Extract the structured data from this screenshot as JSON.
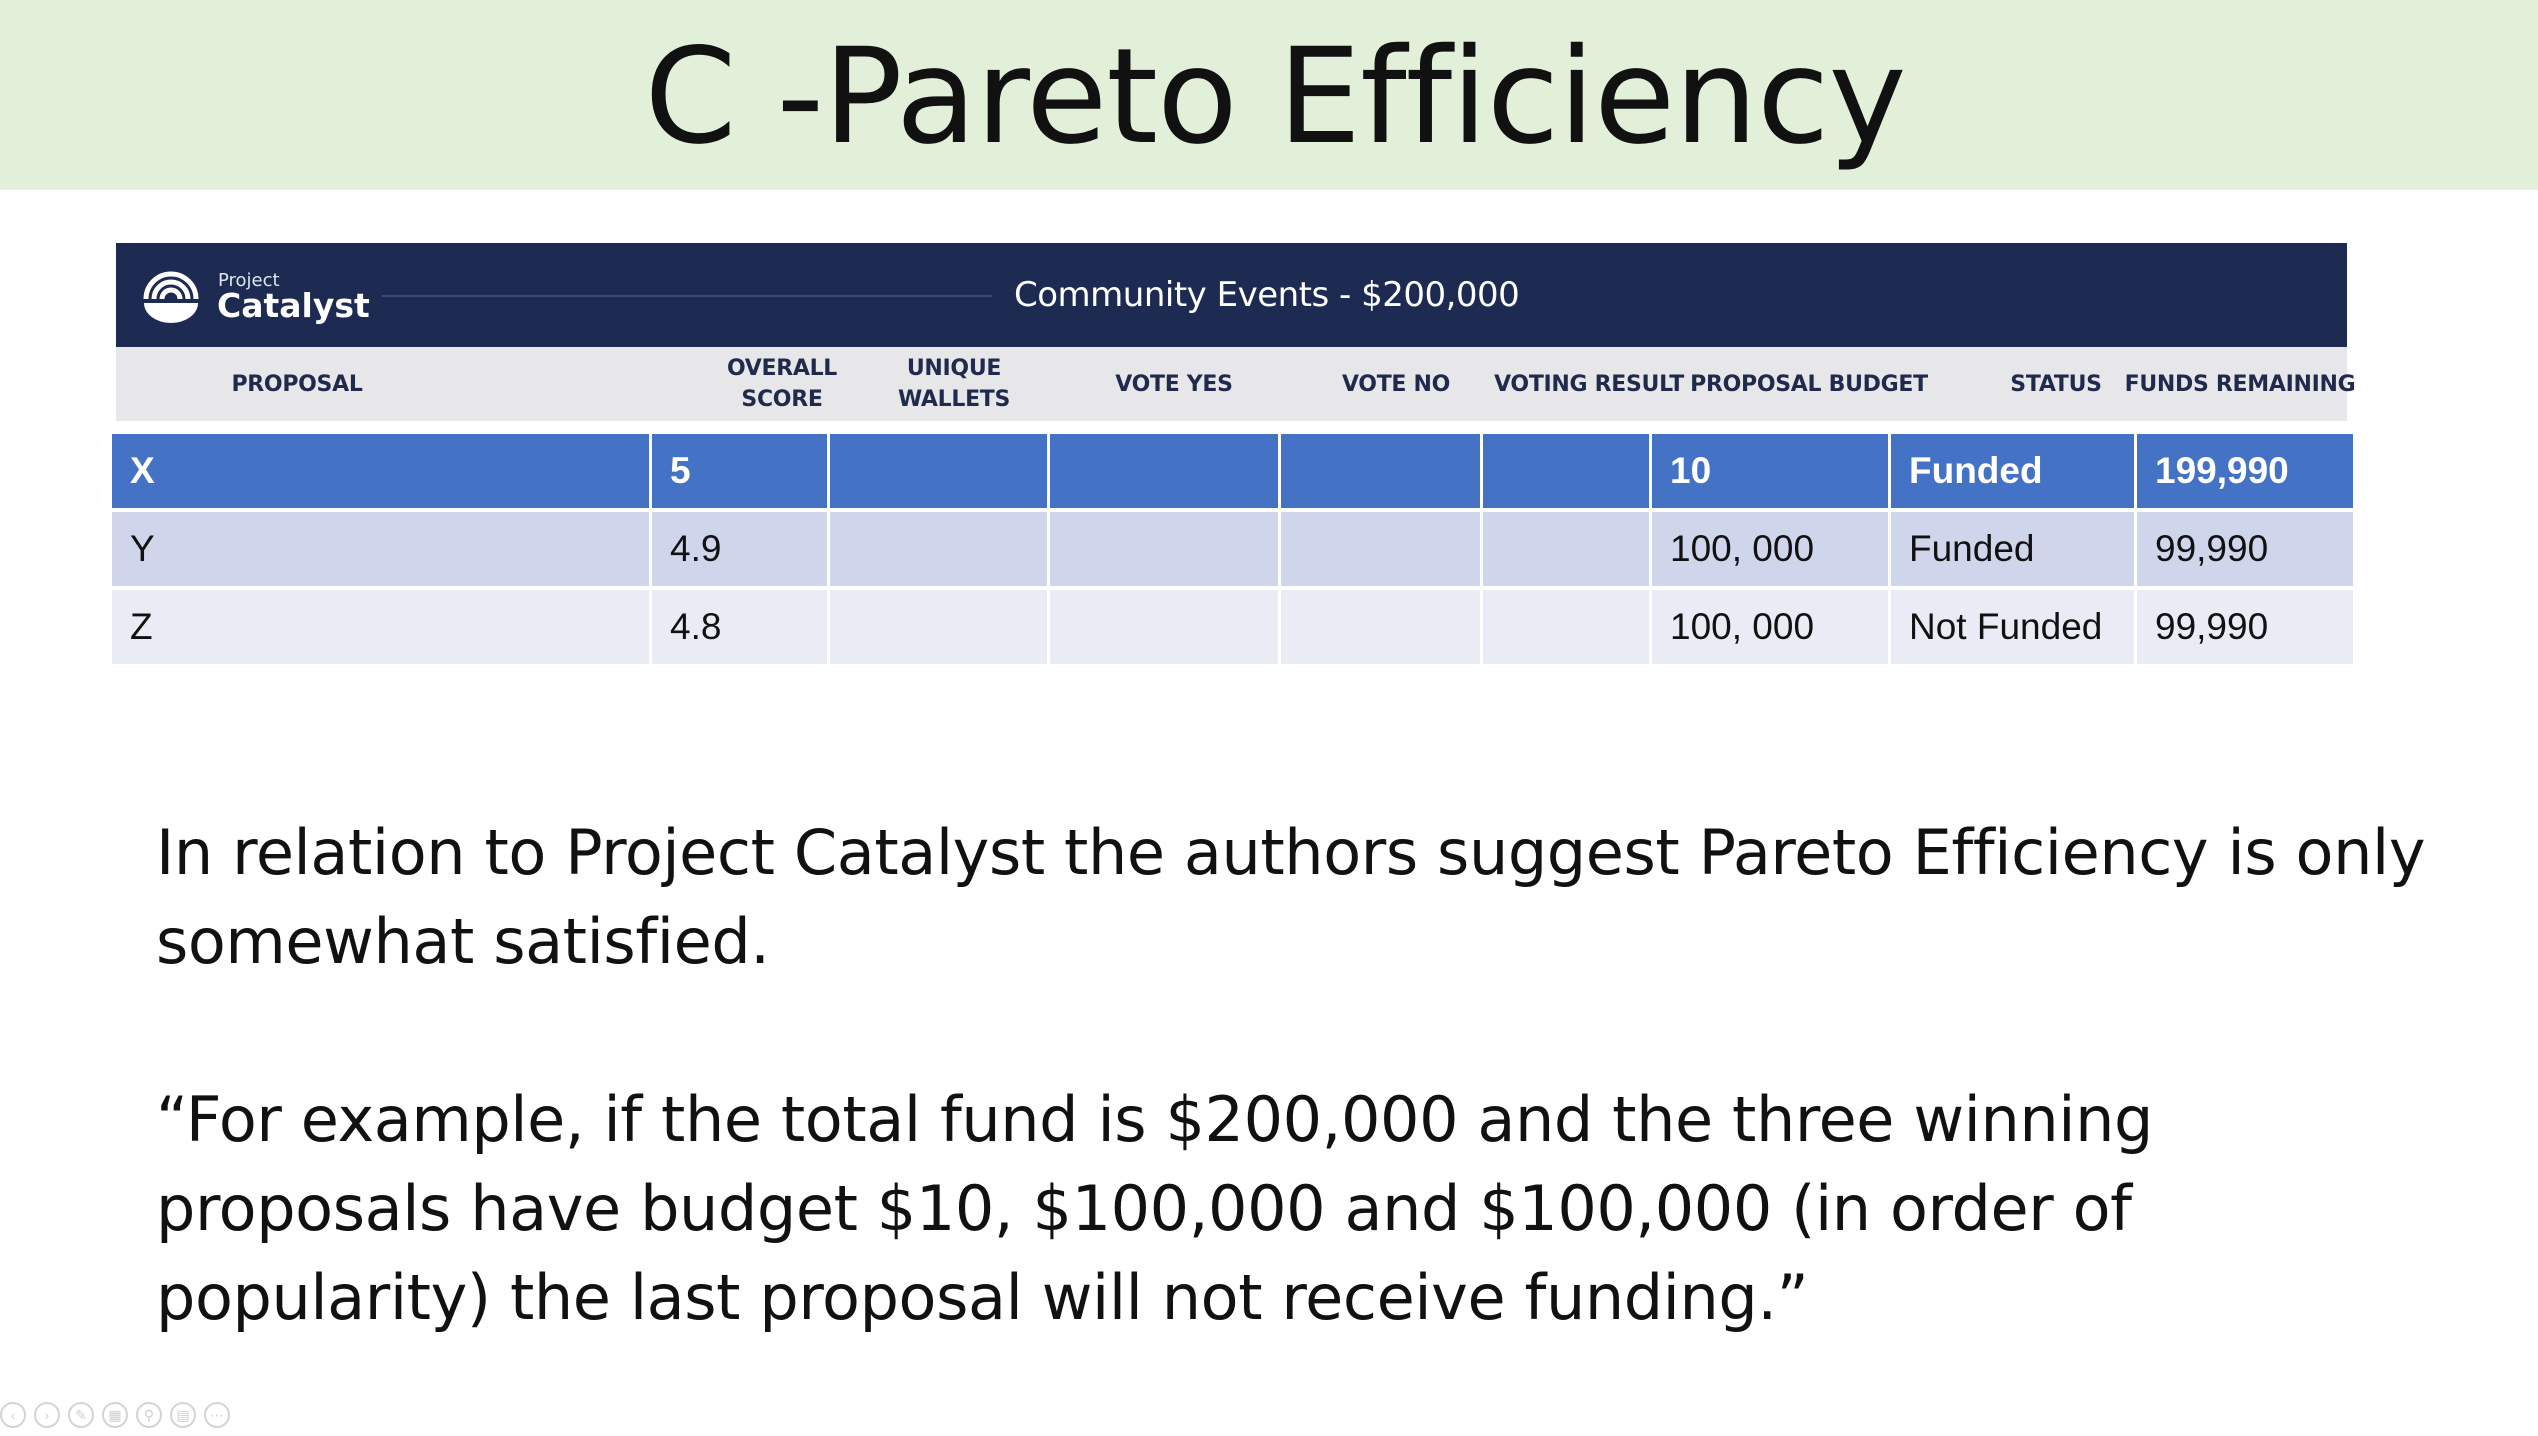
{
  "slide": {
    "title": "C -Pareto Efficiency"
  },
  "banner": {
    "logo_small": "Project",
    "logo_large": "Catalyst",
    "title": "Community Events - $200,000"
  },
  "table": {
    "headers": [
      {
        "line1": "PROPOSAL",
        "line2": ""
      },
      {
        "line1": "OVERALL",
        "line2": "SCORE"
      },
      {
        "line1": "UNIQUE",
        "line2": "WALLETS"
      },
      {
        "line1": "VOTE YES",
        "line2": ""
      },
      {
        "line1": "VOTE NO",
        "line2": ""
      },
      {
        "line1": "VOTING RESULT",
        "line2": ""
      },
      {
        "line1": "PROPOSAL BUDGET",
        "line2": ""
      },
      {
        "line1": "STATUS",
        "line2": ""
      },
      {
        "line1": "FUNDS REMAINING",
        "line2": ""
      }
    ],
    "rows": [
      {
        "proposal": "X",
        "score": "5",
        "wallets": "",
        "yes": "",
        "no": "",
        "result": "",
        "budget": "10",
        "status": "Funded",
        "remaining": "199,990"
      },
      {
        "proposal": "Y",
        "score": "4.9",
        "wallets": "",
        "yes": "",
        "no": "",
        "result": "",
        "budget": "100, 000",
        "status": "Funded",
        "remaining": "99,990"
      },
      {
        "proposal": "Z",
        "score": "4.8",
        "wallets": "",
        "yes": "",
        "no": "",
        "result": "",
        "budget": "100, 000",
        "status": "Not Funded",
        "remaining": "99,990"
      }
    ]
  },
  "body": {
    "paragraph1": "In relation to Project Catalyst the authors suggest Pareto Efficiency is only somewhat satisfied.",
    "paragraph2": "“For example, if the total fund is $200,000 and the three winning proposals have budget $10, $100,000 and $100,000 (in order of popularity) the last proposal will not receive funding.”"
  },
  "controls": {
    "icons": [
      "previous-icon",
      "next-icon",
      "pen-icon",
      "slides-icon",
      "zoom-icon",
      "subtitles-icon",
      "more-icon"
    ],
    "glyphs": [
      "‹",
      "›",
      "✎",
      "▦",
      "⚲",
      "▤",
      "⋯"
    ]
  },
  "colors": {
    "title_band": "#e2efd9",
    "banner": "#1d2b53",
    "header_strip": "#e7e7e9",
    "row_highlight": "#4472c4",
    "row_band_1": "#cfd5ea",
    "row_band_2": "#e9ebf5"
  }
}
